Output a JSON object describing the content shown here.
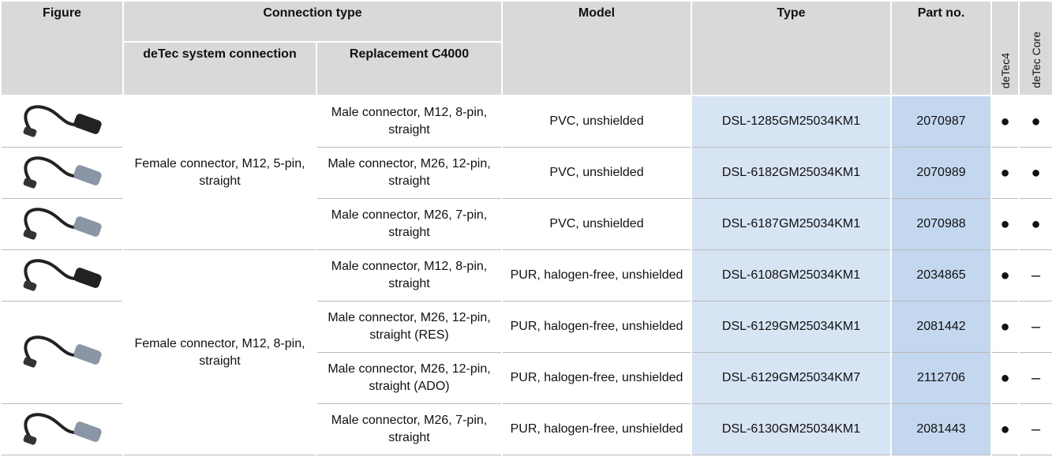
{
  "header": {
    "figure": "Figure",
    "connection_type": "Connection type",
    "system_connection": "deTec system connection",
    "replacement": "Replacement C4000",
    "model": "Model",
    "type": "Type",
    "part_no": "Part no.",
    "detec4": "deTec4",
    "detec_core": "deTec Core"
  },
  "groups": [
    "Female connector, M12, 5-pin, straight",
    "Female connector, M12, 8-pin, straight"
  ],
  "rows": [
    {
      "replacement": "Male connector, M12, 8-pin, straight",
      "model": "PVC, unshielded",
      "type": "DSL-1285GM25034KM1",
      "part_no": "2070987",
      "detec4": "●",
      "detec_core": "●"
    },
    {
      "replacement": "Male connector, M26, 12-pin, straight",
      "model": "PVC, unshielded",
      "type": "DSL-6182GM25034KM1",
      "part_no": "2070989",
      "detec4": "●",
      "detec_core": "●"
    },
    {
      "replacement": "Male connector, M26, 7-pin, straight",
      "model": "PVC, unshielded",
      "type": "DSL-6187GM25034KM1",
      "part_no": "2070988",
      "detec4": "●",
      "detec_core": "●"
    },
    {
      "replacement": "Male connector, M12, 8-pin, straight",
      "model": "PUR, halogen-free, unshielded",
      "type": "DSL-6108GM25034KM1",
      "part_no": "2034865",
      "detec4": "●",
      "detec_core": "–"
    },
    {
      "replacement": "Male connector, M26, 12-pin, straight (RES)",
      "model": "PUR, halogen-free, unshielded",
      "type": "DSL-6129GM25034KM1",
      "part_no": "2081442",
      "detec4": "●",
      "detec_core": "–"
    },
    {
      "replacement": "Male connector, M26, 12-pin, straight (ADO)",
      "model": "PUR, halogen-free, unshielded",
      "type": "DSL-6129GM25034KM7",
      "part_no": "2112706",
      "detec4": "●",
      "detec_core": "–"
    },
    {
      "replacement": "Male connector, M26, 7-pin, straight",
      "model": "PUR, halogen-free, unshielded",
      "type": "DSL-6130GM25034KM1",
      "part_no": "2081443",
      "detec4": "●",
      "detec_core": "–"
    }
  ]
}
